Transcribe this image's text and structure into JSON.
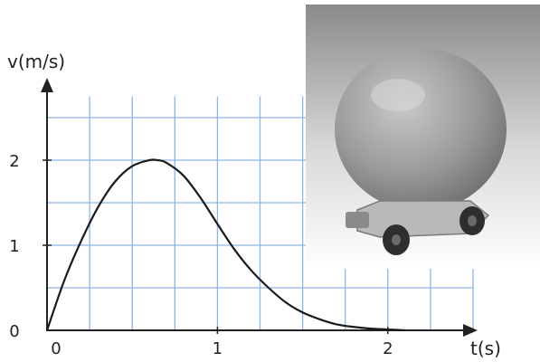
{
  "chart_data": {
    "type": "line",
    "title": "",
    "xlabel": "t(s)",
    "ylabel": "v(m/s)",
    "xlim": [
      0,
      2.5
    ],
    "ylim": [
      0,
      3
    ],
    "x_ticks": [
      {
        "value": 0,
        "label": "0"
      },
      {
        "value": 1,
        "label": "1"
      },
      {
        "value": 2,
        "label": "2"
      }
    ],
    "y_ticks": [
      {
        "value": 0,
        "label": "0"
      },
      {
        "value": 1,
        "label": "1"
      },
      {
        "value": 2,
        "label": "2"
      }
    ],
    "origin_label": "0",
    "grid": true,
    "grid_step_x": 0.25,
    "grid_step_y": 0.5,
    "series": [
      {
        "x": [
          0,
          0.1,
          0.2,
          0.3,
          0.4,
          0.5,
          0.6,
          0.65,
          0.7,
          0.8,
          0.9,
          1.0,
          1.1,
          1.2,
          1.3,
          1.4,
          1.5,
          1.6,
          1.7,
          1.8,
          1.9,
          2.0,
          2.1
        ],
        "y": [
          0,
          0.58,
          1.05,
          1.45,
          1.75,
          1.93,
          2.0,
          2.0,
          1.97,
          1.82,
          1.56,
          1.25,
          0.95,
          0.7,
          0.5,
          0.33,
          0.21,
          0.13,
          0.07,
          0.04,
          0.02,
          0.01,
          0.0
        ]
      }
    ]
  },
  "photo": {
    "subject": "balloon-powered toy car"
  },
  "colors": {
    "grid": "#8fb4e3",
    "curve": "#1a1a1a",
    "axis": "#222222"
  }
}
